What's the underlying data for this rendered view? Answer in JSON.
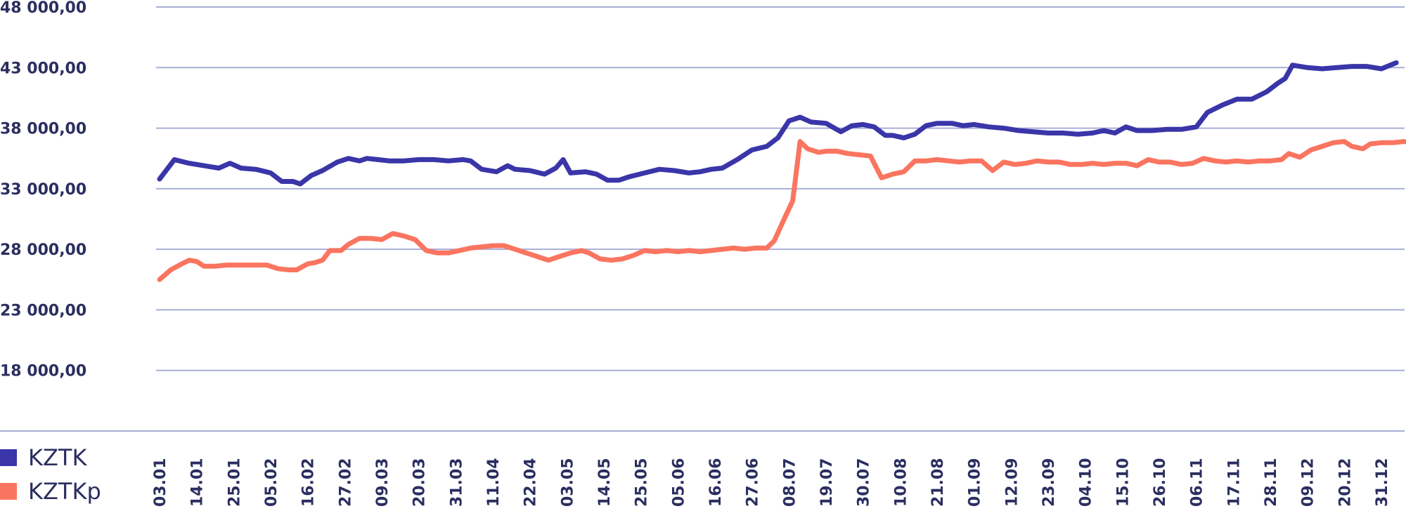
{
  "chart_data": {
    "type": "line",
    "ylim": [
      13000,
      48000
    ],
    "y_ticks": [
      48000,
      43000,
      38000,
      33000,
      28000,
      23000,
      18000
    ],
    "y_tick_labels": [
      "48 000,00",
      "43 000,00",
      "38 000,00",
      "33 000,00",
      "28 000,00",
      "23 000,00",
      "18 000,00"
    ],
    "x_tick_labels": [
      "03.01",
      "14.01",
      "25.01",
      "05.02",
      "16.02",
      "27.02",
      "09.03",
      "20.03",
      "31.03",
      "11.04",
      "22.04",
      "03.05",
      "14.05",
      "25.05",
      "05.06",
      "16.06",
      "27.06",
      "08.07",
      "19.07",
      "30.07",
      "10.08",
      "21.08",
      "01.09",
      "12.09",
      "23.09",
      "04.10",
      "15.10",
      "26.10",
      "06.11",
      "17.11",
      "28.11",
      "09.12",
      "20.12",
      "31.12"
    ],
    "grid": true,
    "legend_position": "bottom-left",
    "series": [
      {
        "name": "KZTK",
        "color": "#3a35a8",
        "values": [
          [
            0,
            33800
          ],
          [
            0.4,
            35400
          ],
          [
            0.8,
            35100
          ],
          [
            1.2,
            34900
          ],
          [
            1.6,
            34700
          ],
          [
            1.9,
            35100
          ],
          [
            2.2,
            34700
          ],
          [
            2.6,
            34600
          ],
          [
            3.0,
            34300
          ],
          [
            3.3,
            33600
          ],
          [
            3.6,
            33600
          ],
          [
            3.8,
            33400
          ],
          [
            4.1,
            34100
          ],
          [
            4.4,
            34500
          ],
          [
            4.8,
            35200
          ],
          [
            5.1,
            35500
          ],
          [
            5.4,
            35300
          ],
          [
            5.6,
            35500
          ],
          [
            5.9,
            35400
          ],
          [
            6.2,
            35300
          ],
          [
            6.6,
            35300
          ],
          [
            7.0,
            35400
          ],
          [
            7.4,
            35400
          ],
          [
            7.8,
            35300
          ],
          [
            8.2,
            35400
          ],
          [
            8.4,
            35300
          ],
          [
            8.7,
            34600
          ],
          [
            9.1,
            34400
          ],
          [
            9.4,
            34900
          ],
          [
            9.6,
            34600
          ],
          [
            10.0,
            34500
          ],
          [
            10.4,
            34200
          ],
          [
            10.7,
            34700
          ],
          [
            10.9,
            35400
          ],
          [
            11.1,
            34300
          ],
          [
            11.5,
            34400
          ],
          [
            11.8,
            34200
          ],
          [
            12.1,
            33700
          ],
          [
            12.4,
            33700
          ],
          [
            12.7,
            34000
          ],
          [
            13.1,
            34300
          ],
          [
            13.5,
            34600
          ],
          [
            13.9,
            34500
          ],
          [
            14.3,
            34300
          ],
          [
            14.6,
            34400
          ],
          [
            14.9,
            34600
          ],
          [
            15.2,
            34700
          ],
          [
            15.6,
            35400
          ],
          [
            16.0,
            36200
          ],
          [
            16.4,
            36500
          ],
          [
            16.7,
            37200
          ],
          [
            17.0,
            38600
          ],
          [
            17.3,
            38900
          ],
          [
            17.6,
            38500
          ],
          [
            18.0,
            38400
          ],
          [
            18.4,
            37700
          ],
          [
            18.7,
            38200
          ],
          [
            19.0,
            38300
          ],
          [
            19.3,
            38100
          ],
          [
            19.6,
            37400
          ],
          [
            19.8,
            37400
          ],
          [
            20.1,
            37200
          ],
          [
            20.4,
            37500
          ],
          [
            20.7,
            38200
          ],
          [
            21.0,
            38400
          ],
          [
            21.4,
            38400
          ],
          [
            21.7,
            38200
          ],
          [
            22.0,
            38300
          ],
          [
            22.4,
            38100
          ],
          [
            22.8,
            38000
          ],
          [
            23.2,
            37800
          ],
          [
            23.6,
            37700
          ],
          [
            24.0,
            37600
          ],
          [
            24.4,
            37600
          ],
          [
            24.8,
            37500
          ],
          [
            25.2,
            37600
          ],
          [
            25.5,
            37800
          ],
          [
            25.8,
            37600
          ],
          [
            26.1,
            38100
          ],
          [
            26.4,
            37800
          ],
          [
            26.8,
            37800
          ],
          [
            27.2,
            37900
          ],
          [
            27.6,
            37900
          ],
          [
            28.0,
            38100
          ],
          [
            28.3,
            39300
          ],
          [
            28.7,
            39900
          ],
          [
            29.1,
            40400
          ],
          [
            29.5,
            40400
          ],
          [
            29.9,
            41000
          ],
          [
            30.2,
            41700
          ],
          [
            30.4,
            42100
          ],
          [
            30.6,
            43200
          ],
          [
            31.0,
            43000
          ],
          [
            31.4,
            42900
          ],
          [
            31.8,
            43000
          ],
          [
            32.2,
            43100
          ],
          [
            32.6,
            43100
          ],
          [
            33.0,
            42900
          ],
          [
            33.4,
            43400
          ]
        ]
      },
      {
        "name": "KZTKp",
        "color": "#fa7560",
        "values": [
          [
            0,
            25500
          ],
          [
            0.3,
            26300
          ],
          [
            0.6,
            26800
          ],
          [
            0.8,
            27100
          ],
          [
            1.0,
            27000
          ],
          [
            1.2,
            26600
          ],
          [
            1.5,
            26600
          ],
          [
            1.8,
            26700
          ],
          [
            2.2,
            26700
          ],
          [
            2.6,
            26700
          ],
          [
            2.9,
            26700
          ],
          [
            3.2,
            26400
          ],
          [
            3.5,
            26300
          ],
          [
            3.7,
            26300
          ],
          [
            4.0,
            26800
          ],
          [
            4.2,
            26900
          ],
          [
            4.4,
            27100
          ],
          [
            4.6,
            27900
          ],
          [
            4.9,
            27900
          ],
          [
            5.1,
            28400
          ],
          [
            5.4,
            28900
          ],
          [
            5.7,
            28900
          ],
          [
            6.0,
            28800
          ],
          [
            6.3,
            29300
          ],
          [
            6.6,
            29100
          ],
          [
            6.9,
            28800
          ],
          [
            7.2,
            27900
          ],
          [
            7.5,
            27700
          ],
          [
            7.8,
            27700
          ],
          [
            8.1,
            27900
          ],
          [
            8.4,
            28100
          ],
          [
            8.7,
            28200
          ],
          [
            9.0,
            28300
          ],
          [
            9.3,
            28300
          ],
          [
            9.6,
            28000
          ],
          [
            9.9,
            27700
          ],
          [
            10.2,
            27400
          ],
          [
            10.5,
            27100
          ],
          [
            10.8,
            27400
          ],
          [
            11.1,
            27700
          ],
          [
            11.4,
            27900
          ],
          [
            11.6,
            27700
          ],
          [
            11.9,
            27200
          ],
          [
            12.2,
            27100
          ],
          [
            12.5,
            27200
          ],
          [
            12.8,
            27500
          ],
          [
            13.1,
            27900
          ],
          [
            13.4,
            27800
          ],
          [
            13.7,
            27900
          ],
          [
            14.0,
            27800
          ],
          [
            14.3,
            27900
          ],
          [
            14.6,
            27800
          ],
          [
            14.9,
            27900
          ],
          [
            15.2,
            28000
          ],
          [
            15.5,
            28100
          ],
          [
            15.8,
            28000
          ],
          [
            16.1,
            28100
          ],
          [
            16.4,
            28100
          ],
          [
            16.6,
            28700
          ],
          [
            16.9,
            30700
          ],
          [
            17.1,
            32000
          ],
          [
            17.3,
            36900
          ],
          [
            17.5,
            36300
          ],
          [
            17.8,
            36000
          ],
          [
            18.0,
            36100
          ],
          [
            18.3,
            36100
          ],
          [
            18.6,
            35900
          ],
          [
            18.9,
            35800
          ],
          [
            19.2,
            35700
          ],
          [
            19.5,
            33900
          ],
          [
            19.8,
            34200
          ],
          [
            20.1,
            34400
          ],
          [
            20.4,
            35300
          ],
          [
            20.7,
            35300
          ],
          [
            21.0,
            35400
          ],
          [
            21.3,
            35300
          ],
          [
            21.6,
            35200
          ],
          [
            21.9,
            35300
          ],
          [
            22.2,
            35300
          ],
          [
            22.5,
            34500
          ],
          [
            22.8,
            35200
          ],
          [
            23.1,
            35000
          ],
          [
            23.4,
            35100
          ],
          [
            23.7,
            35300
          ],
          [
            24.0,
            35200
          ],
          [
            24.3,
            35200
          ],
          [
            24.6,
            35000
          ],
          [
            24.9,
            35000
          ],
          [
            25.2,
            35100
          ],
          [
            25.5,
            35000
          ],
          [
            25.8,
            35100
          ],
          [
            26.1,
            35100
          ],
          [
            26.4,
            34900
          ],
          [
            26.7,
            35400
          ],
          [
            27.0,
            35200
          ],
          [
            27.3,
            35200
          ],
          [
            27.6,
            35000
          ],
          [
            27.9,
            35100
          ],
          [
            28.2,
            35500
          ],
          [
            28.5,
            35300
          ],
          [
            28.8,
            35200
          ],
          [
            29.1,
            35300
          ],
          [
            29.4,
            35200
          ],
          [
            29.7,
            35300
          ],
          [
            30.0,
            35300
          ],
          [
            30.3,
            35400
          ],
          [
            30.5,
            35900
          ],
          [
            30.8,
            35600
          ],
          [
            31.1,
            36200
          ],
          [
            31.4,
            36500
          ],
          [
            31.7,
            36800
          ],
          [
            32.0,
            36900
          ],
          [
            32.2,
            36500
          ],
          [
            32.5,
            36300
          ],
          [
            32.7,
            36700
          ],
          [
            33.0,
            36800
          ],
          [
            33.3,
            36800
          ],
          [
            33.6,
            36900
          ],
          [
            33.9,
            36800
          ]
        ]
      }
    ]
  }
}
